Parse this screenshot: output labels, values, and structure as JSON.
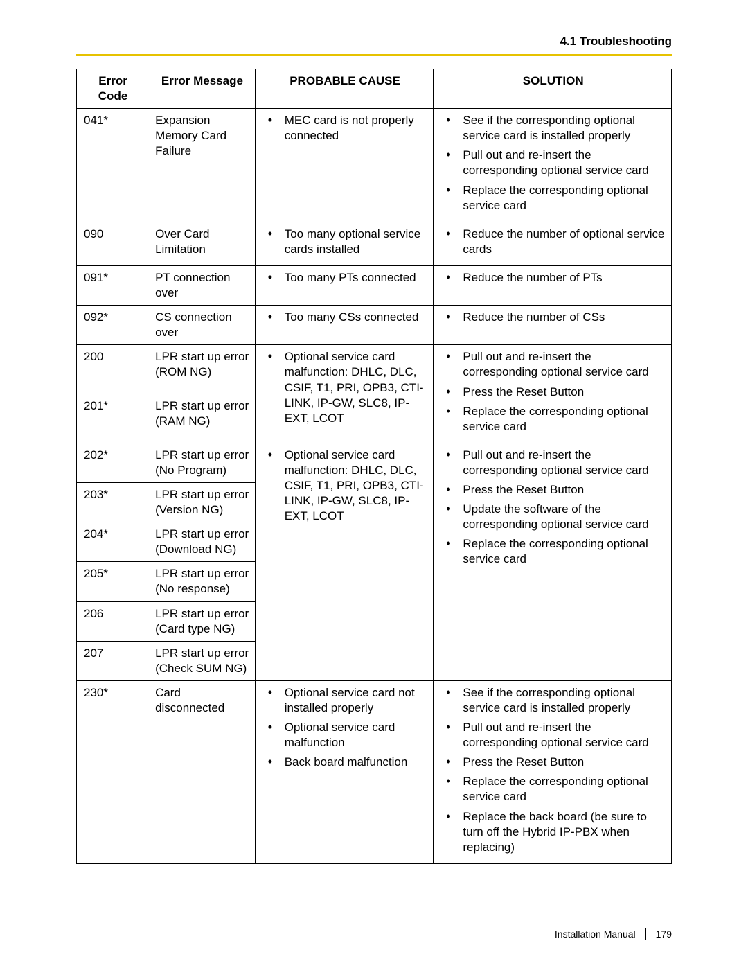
{
  "section_title": "4.1 Troubleshooting",
  "rule_color": "#e6c200",
  "footer": {
    "doc": "Installation Manual",
    "page": "179"
  },
  "table": {
    "headers": {
      "code": "Error Code",
      "msg": "Error Message",
      "cause": "PROBABLE CAUSE",
      "sol": "SOLUTION"
    },
    "group1": {
      "r1": {
        "code": "041*",
        "msg": "Expansion Memory Card Failure",
        "cause": [
          "MEC card is not properly connected"
        ],
        "sol": [
          "See if the corresponding optional service card is installed properly",
          "Pull out and re-insert the corresponding optional service card",
          "Replace the corresponding optional service card"
        ]
      },
      "r2": {
        "code": "090",
        "msg": "Over Card Limitation",
        "cause": [
          "Too many optional service cards installed"
        ],
        "sol": [
          "Reduce the number of optional service cards"
        ]
      },
      "r3": {
        "code": "091*",
        "msg": "PT connection over",
        "cause": [
          "Too many PTs connected"
        ],
        "sol": [
          "Reduce the number of PTs"
        ]
      },
      "r4": {
        "code": "092*",
        "msg": "CS connection over",
        "cause": [
          "Too many CSs connected"
        ],
        "sol": [
          "Reduce the number of CSs"
        ]
      }
    },
    "group2": {
      "cause": [
        "Optional service card malfunction: DHLC, DLC, CSIF, T1, PRI, OPB3, CTI-LINK, IP-GW, SLC8, IP-EXT, LCOT"
      ],
      "sol": [
        "Pull out and re-insert the corresponding optional service card",
        "Press the Reset Button",
        "Replace the corresponding optional service card"
      ],
      "r200": {
        "code": "200",
        "msg": "LPR start up error (ROM NG)"
      },
      "r201": {
        "code": "201*",
        "msg": "LPR start up error (RAM NG)"
      }
    },
    "group3": {
      "cause": [
        "Optional service card malfunction: DHLC, DLC, CSIF, T1, PRI, OPB3, CTI-LINK, IP-GW, SLC8, IP-EXT, LCOT"
      ],
      "sol": [
        "Pull out and re-insert the corresponding optional service card",
        "Press the Reset Button",
        "Update the software of the corresponding optional service card",
        "Replace the corresponding optional service card"
      ],
      "r202": {
        "code": "202*",
        "msg": "LPR start up error (No Program)"
      },
      "r203": {
        "code": "203*",
        "msg": "LPR start up error (Version NG)"
      },
      "r204": {
        "code": "204*",
        "msg": "LPR start up error (Download NG)"
      },
      "r205": {
        "code": "205*",
        "msg": "LPR start up error (No response)"
      },
      "r206": {
        "code": "206",
        "msg": "LPR start up error (Card type NG)"
      },
      "r207": {
        "code": "207",
        "msg": "LPR start up error (Check SUM NG)"
      }
    },
    "group4": {
      "r230": {
        "code": "230*",
        "msg": "Card disconnected",
        "cause": [
          "Optional service card not installed properly",
          "Optional service card malfunction",
          "Back board malfunction"
        ],
        "sol": [
          "See if the corresponding optional service card is installed properly",
          "Pull out and re-insert the corresponding optional service card",
          "Press the Reset Button",
          "Replace the corresponding optional service card",
          "Replace the back board (be sure to turn off the Hybrid IP-PBX when replacing)"
        ]
      }
    }
  }
}
